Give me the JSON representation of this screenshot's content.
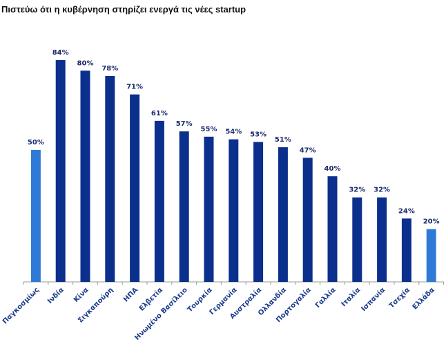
{
  "chart_data": {
    "type": "bar",
    "title": "Πιστεύω ότι  η κυβέρνηση στηρίζει ενεργά τις νέες startup",
    "xlabel": "",
    "ylabel": "",
    "ylim": [
      0,
      84
    ],
    "grid": false,
    "categories": [
      "Παγκοσμίως",
      "Ινδία",
      "Κίνα",
      "Σιγκαπούρη",
      "ΗΠΑ",
      "Ελβετία",
      "Ηνωμένο Βασίλειο",
      "Τουρκία",
      "Γερμανία",
      "Αυστραλία",
      "Ολλανδία",
      "Πορτογαλία",
      "Γαλλία",
      "Ιταλία",
      "Ισπανία",
      "Τσεχία",
      "Ελλάδα"
    ],
    "values": [
      50,
      84,
      80,
      78,
      71,
      61,
      57,
      55,
      54,
      53,
      51,
      47,
      40,
      32,
      32,
      24,
      20
    ],
    "value_labels": [
      "50%",
      "84%",
      "80%",
      "78%",
      "71%",
      "61%",
      "57%",
      "55%",
      "54%",
      "53%",
      "51%",
      "47%",
      "40%",
      "32%",
      "32%",
      "24%",
      "20%"
    ],
    "highlighted": [
      0,
      16
    ],
    "colors": {
      "default": "#0a2f8c",
      "highlight": "#2f7ad6",
      "axis": "#999999"
    }
  }
}
